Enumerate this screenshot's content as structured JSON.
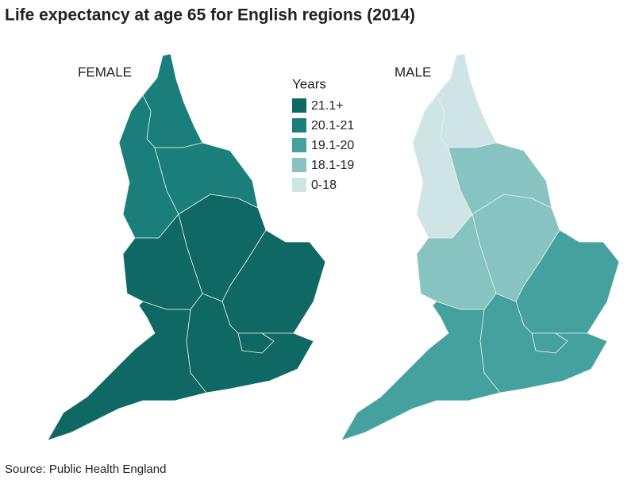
{
  "title": "Life expectancy at age 65 for English regions (2014)",
  "legend": {
    "title": "Years",
    "items": [
      {
        "label": "21.1+",
        "color": "#0f6864"
      },
      {
        "label": "20.1-21",
        "color": "#1a7f7b"
      },
      {
        "label": "19.1-20",
        "color": "#45a19e"
      },
      {
        "label": "18.1-19",
        "color": "#87c3c1"
      },
      {
        "label": "0-18",
        "color": "#cfe5e5"
      }
    ]
  },
  "maps": [
    {
      "label": "FEMALE",
      "fills": [
        1,
        1,
        1,
        0,
        0,
        0,
        0,
        0,
        0
      ]
    },
    {
      "label": "MALE",
      "fills": [
        4,
        4,
        3,
        3,
        3,
        2,
        2,
        2,
        2
      ]
    }
  ],
  "source": "Source: Public Health England"
}
